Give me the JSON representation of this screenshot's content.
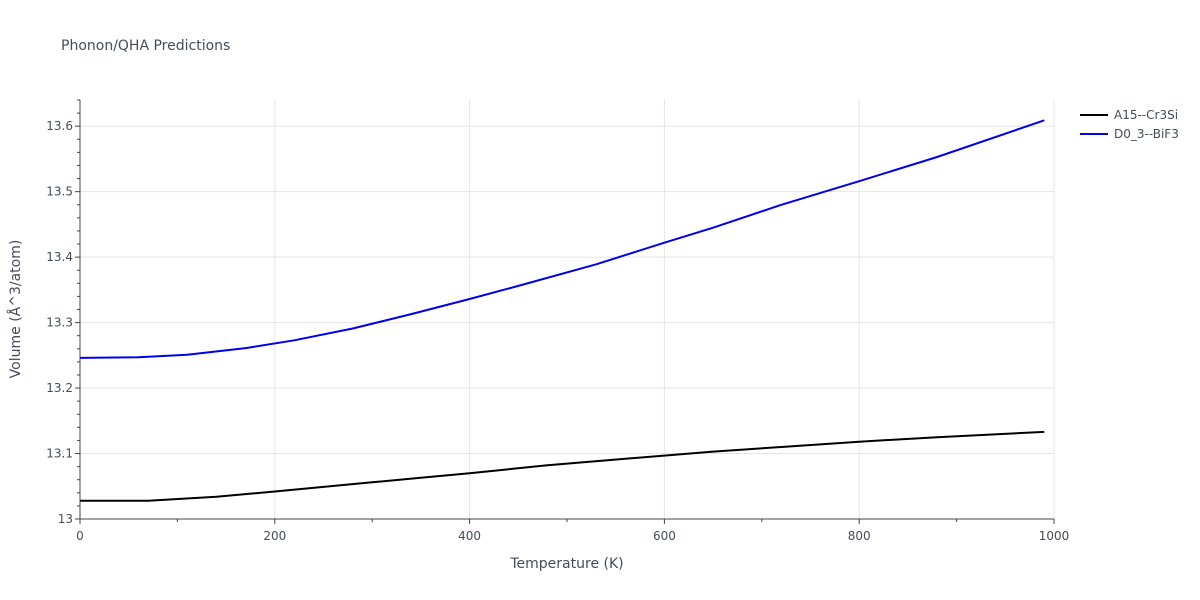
{
  "chart_data": {
    "type": "line",
    "title": "Phonon/QHA Predictions",
    "xlabel": "Temperature (K)",
    "ylabel": "Volume (Å^3/atom)",
    "xlim": [
      0,
      1000
    ],
    "ylim": [
      13.0,
      13.64
    ],
    "x_ticks": [
      0,
      200,
      400,
      600,
      800,
      1000
    ],
    "x_tick_labels": [
      "0",
      "200",
      "400",
      "600",
      "800",
      "1000"
    ],
    "y_ticks": [
      13.0,
      13.1,
      13.2,
      13.3,
      13.4,
      13.5,
      13.6
    ],
    "y_tick_labels": [
      "13",
      "13.1",
      "13.2",
      "13.3",
      "13.4",
      "13.5",
      "13.6"
    ],
    "grid": true,
    "legend_position": "top-right",
    "series": [
      {
        "name": "A15--Cr3Si",
        "color": "#000000",
        "x": [
          0,
          70,
          140,
          200,
          250,
          300,
          350,
          400,
          480,
          560,
          650,
          720,
          800,
          880,
          990
        ],
        "y": [
          13.028,
          13.028,
          13.034,
          13.042,
          13.049,
          13.056,
          13.063,
          13.07,
          13.082,
          13.092,
          13.103,
          13.11,
          13.118,
          13.125,
          13.133
        ]
      },
      {
        "name": "D0_3--BiF3",
        "color": "#0000ee",
        "x": [
          0,
          60,
          110,
          170,
          220,
          280,
          340,
          400,
          450,
          530,
          600,
          650,
          720,
          800,
          880,
          990
        ],
        "y": [
          13.246,
          13.247,
          13.251,
          13.261,
          13.273,
          13.291,
          13.313,
          13.336,
          13.356,
          13.389,
          13.422,
          13.445,
          13.48,
          13.516,
          13.553,
          13.609
        ]
      }
    ]
  }
}
